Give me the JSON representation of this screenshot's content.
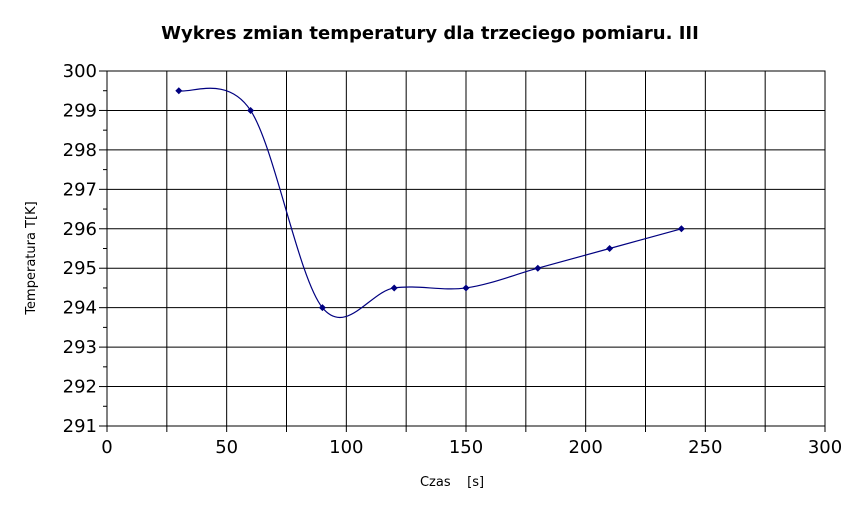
{
  "chart_data": {
    "type": "line",
    "title": "Wykres zmian temperatury dla trzeciego pomiaru.  III",
    "xlabel": "Czas    [s]",
    "ylabel": "Temperatura T[K]",
    "xlim": [
      0,
      300
    ],
    "ylim": [
      291,
      300
    ],
    "xticks": [
      0,
      50,
      100,
      150,
      200,
      250,
      300
    ],
    "yticks": [
      291,
      292,
      293,
      294,
      295,
      296,
      297,
      298,
      299,
      300
    ],
    "x_grid_step": 25,
    "grid": true,
    "smooth": true,
    "series": [
      {
        "color": "#000080",
        "x": [
          30,
          60,
          90,
          120,
          150,
          180,
          210,
          240
        ],
        "values": [
          299.5,
          299,
          294,
          294.5,
          294.5,
          295,
          295.5,
          296
        ]
      }
    ]
  }
}
